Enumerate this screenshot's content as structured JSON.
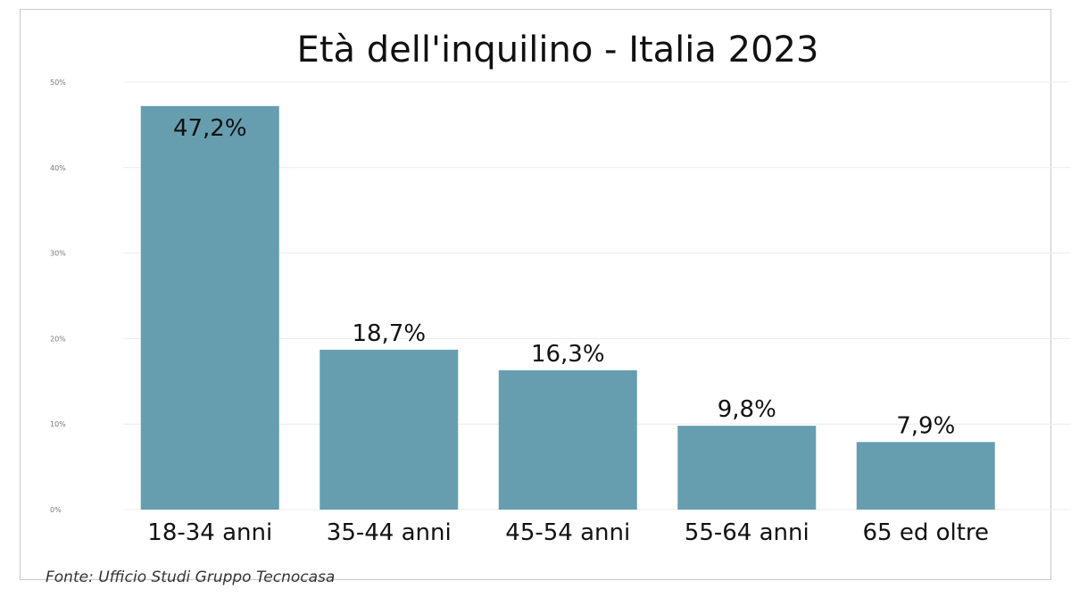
{
  "chart_data": {
    "type": "bar",
    "title": "Età dell'inquilino - Italia 2023",
    "categories": [
      "18-34 anni",
      "35-44 anni",
      "45-54 anni",
      "55-64 anni",
      "65 ed oltre"
    ],
    "values": [
      47.2,
      18.7,
      16.3,
      9.8,
      7.9
    ],
    "data_labels": [
      "47,2%",
      "18,7%",
      "16,3%",
      "9,8%",
      "7,9%"
    ],
    "yticks": [
      0,
      10,
      20,
      30,
      40,
      50
    ],
    "ytick_labels": [
      "0%",
      "10%",
      "20%",
      "30%",
      "40%",
      "50%"
    ],
    "ylim": [
      0,
      50
    ],
    "xlabel": "",
    "ylabel": "",
    "grid": true,
    "bar_color": "#669eb0",
    "source": "Fonte: Ufficio Studi Gruppo Tecnocasa"
  }
}
